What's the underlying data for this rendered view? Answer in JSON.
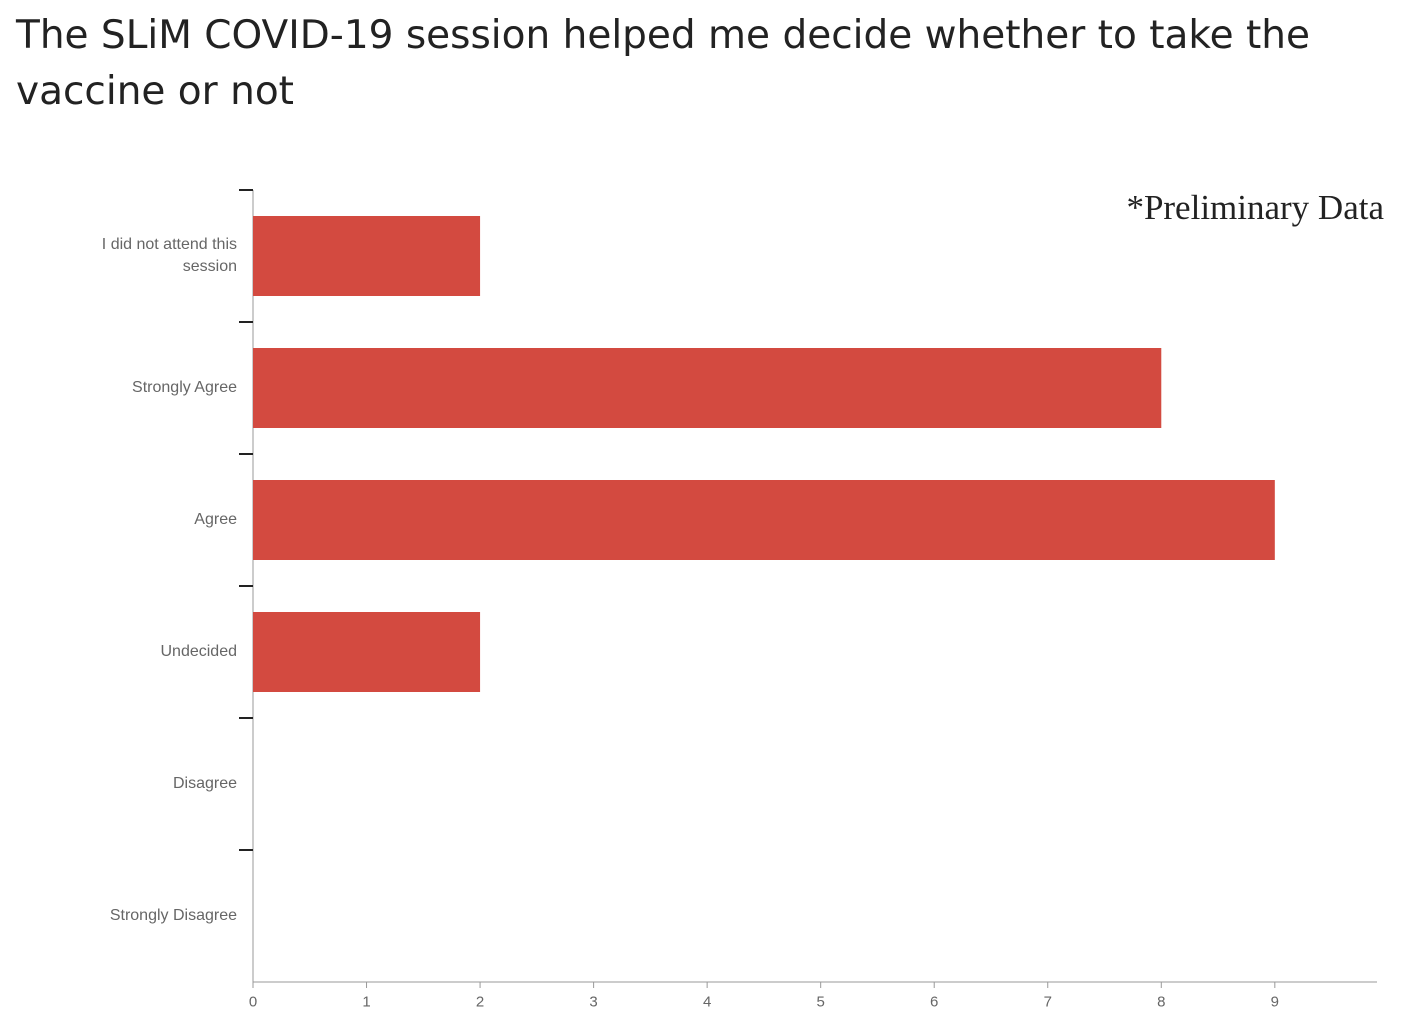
{
  "chart_data": {
    "type": "bar",
    "orientation": "horizontal",
    "title": "The SLiM COVID-19 session helped me decide whether to take the vaccine or not",
    "annotation": "*Preliminary Data",
    "categories": [
      "I did not attend this session",
      "Strongly Agree",
      "Agree",
      "Undecided",
      "Disagree",
      "Strongly Disagree"
    ],
    "values": [
      2,
      8,
      9,
      2,
      0,
      0
    ],
    "color": "#d34a40",
    "xlim": [
      0,
      9.9
    ],
    "xticks": [
      0,
      1,
      2,
      3,
      4,
      5,
      6,
      7,
      8,
      9
    ]
  }
}
